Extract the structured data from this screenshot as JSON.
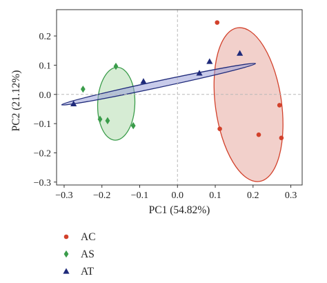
{
  "chart_data": {
    "type": "scatter",
    "xlabel": "PC1 (54.82%)",
    "ylabel": "PC2 (21.12%)",
    "xlim": [
      -0.32,
      0.33
    ],
    "ylim": [
      -0.31,
      0.29
    ],
    "xticks": [
      -0.3,
      -0.2,
      -0.1,
      0.0,
      0.1,
      0.2,
      0.3
    ],
    "yticks": [
      0.2,
      0.1,
      0.0,
      -0.1,
      -0.2,
      -0.3
    ],
    "xtick_labels": [
      "−0.3",
      "−0.2",
      "−0.1",
      "0.0",
      "0.1",
      "0.2",
      "0.3"
    ],
    "ytick_labels": [
      "0.2",
      "0.1",
      "0.0",
      "−0.1",
      "−0.2",
      "−0.3"
    ],
    "reference_lines": {
      "x": 0,
      "y": 0,
      "style": "dashed"
    },
    "grid": false,
    "legend_position": "bottom-left",
    "series": [
      {
        "name": "AC",
        "marker": "circle",
        "color": "#d2412b",
        "fill": "#e8a9a0",
        "points": [
          [
            0.105,
            0.246
          ],
          [
            0.112,
            -0.118
          ],
          [
            0.215,
            -0.138
          ],
          [
            0.27,
            -0.037
          ],
          [
            0.275,
            -0.149
          ]
        ],
        "ellipse": {
          "center": [
            0.188,
            -0.035
          ],
          "rx": 0.0875,
          "ry": 0.2655,
          "angle_deg": -8
        }
      },
      {
        "name": "AS",
        "marker": "diamond",
        "color": "#3a9c4a",
        "fill": "#b5ddb0",
        "points": [
          [
            -0.25,
            0.018
          ],
          [
            -0.163,
            0.096
          ],
          [
            -0.205,
            -0.085
          ],
          [
            -0.185,
            -0.09
          ],
          [
            -0.117,
            -0.107
          ]
        ],
        "ellipse": {
          "center": [
            -0.162,
            -0.032
          ],
          "rx": 0.0492,
          "ry": 0.1248,
          "angle_deg": 2
        }
      },
      {
        "name": "AT",
        "marker": "triangle",
        "color": "#1f2a7a",
        "fill": "#9aa0d8",
        "points": [
          [
            -0.275,
            -0.032
          ],
          [
            -0.09,
            0.045
          ],
          [
            0.058,
            0.073
          ],
          [
            0.085,
            0.113
          ],
          [
            0.165,
            0.141
          ]
        ],
        "ellipse": {
          "center": [
            -0.05,
            0.035
          ],
          "rx": 0.2623,
          "ry": 0.0112,
          "angle_deg": -12
        }
      }
    ]
  },
  "colors": {
    "axis": "#333333",
    "dashed_line": "#b8b8b8"
  }
}
